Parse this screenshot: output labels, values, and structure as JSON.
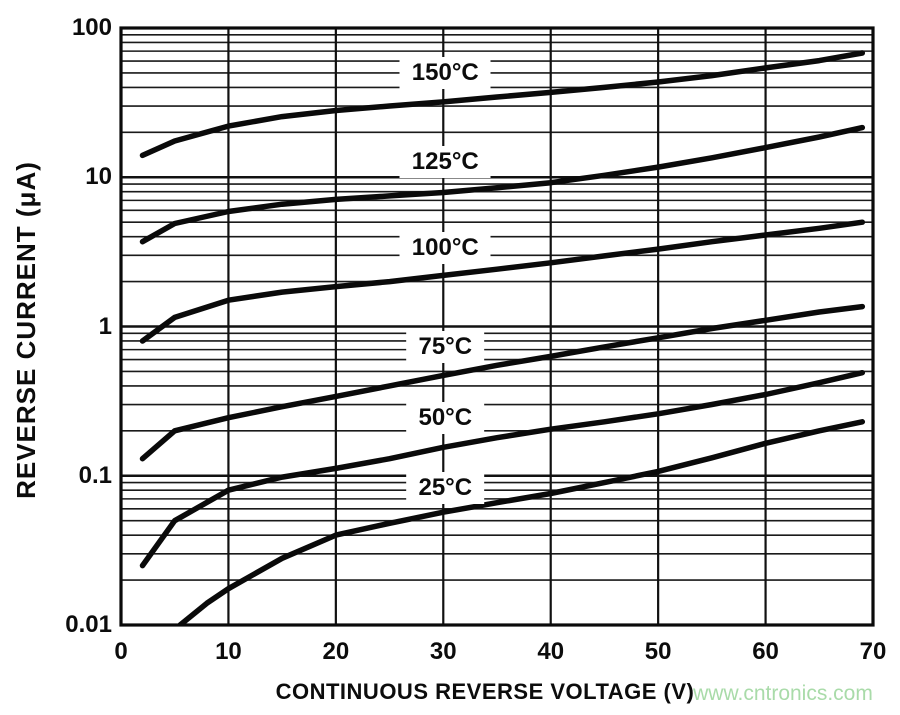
{
  "watermark_text": "www.cntronics.com",
  "colors": {
    "curve": "#0a0a0a",
    "grid_major": "#111111",
    "grid_minor": "#1a1a1a",
    "border": "#0a0a0a",
    "label_text": "#0c0c0c",
    "watermark": "#a9dba9",
    "background": "#ffffff"
  },
  "chart_data": {
    "type": "line",
    "title": "",
    "xlabel": "CONTINUOUS REVERSE VOLTAGE (V)",
    "ylabel": "REVERSE CURRENT (μA)",
    "x_range": [
      0,
      70
    ],
    "y_range": [
      0.01,
      100
    ],
    "y_scale": "log",
    "grid": "full log minor grid horizontal; vertical gridline every 10 V",
    "legend_position": "inline-labels-on-curves",
    "x_ticks": [
      0,
      10,
      20,
      30,
      40,
      50,
      60,
      70
    ],
    "x_tick_labels": [
      "0",
      "10",
      "20",
      "30",
      "40",
      "50",
      "60",
      "70"
    ],
    "y_ticks": [
      100,
      10,
      1,
      0.1,
      0.01
    ],
    "y_tick_labels": [
      "100",
      "10",
      "1",
      "0.1",
      "0.01"
    ],
    "series": [
      {
        "name": "150°C",
        "label_x": 30,
        "label_value": 50,
        "x": [
          2,
          5,
          10,
          15,
          20,
          25,
          30,
          35,
          40,
          45,
          50,
          55,
          60,
          65,
          69
        ],
        "y": [
          14,
          17.5,
          22,
          25.5,
          28,
          30,
          32,
          34.5,
          37,
          40,
          43.5,
          48,
          54,
          60.5,
          68
        ]
      },
      {
        "name": "125°C",
        "label_x": 30,
        "label_value": 12.6,
        "x": [
          2,
          5,
          10,
          15,
          20,
          25,
          30,
          35,
          40,
          45,
          50,
          55,
          60,
          65,
          69
        ],
        "y": [
          3.7,
          4.9,
          5.9,
          6.6,
          7.1,
          7.5,
          7.9,
          8.5,
          9.2,
          10.3,
          11.7,
          13.5,
          15.8,
          18.6,
          21.5
        ]
      },
      {
        "name": "100°C",
        "label_x": 30,
        "label_value": 3.36,
        "x": [
          2,
          5,
          10,
          15,
          20,
          25,
          30,
          35,
          40,
          45,
          50,
          55,
          60,
          65,
          69
        ],
        "y": [
          0.8,
          1.15,
          1.5,
          1.7,
          1.85,
          2.0,
          2.2,
          2.42,
          2.67,
          2.97,
          3.3,
          3.7,
          4.1,
          4.55,
          5.0
        ]
      },
      {
        "name": "75°C",
        "label_x": 30,
        "label_value": 0.73,
        "x": [
          2,
          5,
          10,
          15,
          20,
          25,
          30,
          35,
          40,
          45,
          50,
          55,
          60,
          65,
          69
        ],
        "y": [
          0.13,
          0.2,
          0.245,
          0.29,
          0.34,
          0.4,
          0.47,
          0.55,
          0.63,
          0.73,
          0.84,
          0.97,
          1.1,
          1.25,
          1.36
        ]
      },
      {
        "name": "50°C",
        "label_x": 30,
        "label_value": 0.244,
        "x": [
          2,
          5,
          10,
          15,
          20,
          25,
          30,
          35,
          40,
          45,
          50,
          55,
          60,
          65,
          69
        ],
        "y": [
          0.025,
          0.05,
          0.08,
          0.098,
          0.112,
          0.13,
          0.155,
          0.18,
          0.205,
          0.23,
          0.26,
          0.3,
          0.35,
          0.42,
          0.49
        ]
      },
      {
        "name": "25°C",
        "label_x": 30,
        "label_value": 0.083,
        "x": [
          5.5,
          8,
          10,
          15,
          20,
          25,
          30,
          35,
          40,
          45,
          50,
          55,
          60,
          65,
          69
        ],
        "y": [
          0.01,
          0.014,
          0.0175,
          0.028,
          0.04,
          0.048,
          0.057,
          0.066,
          0.076,
          0.09,
          0.107,
          0.132,
          0.165,
          0.2,
          0.23
        ]
      }
    ]
  }
}
